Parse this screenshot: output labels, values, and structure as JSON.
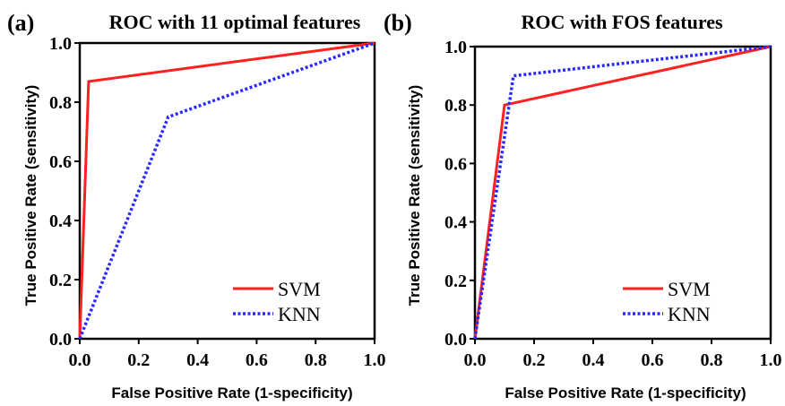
{
  "chart_data": [
    {
      "type": "line",
      "panel_label": "(a)",
      "title": "ROC with 11 optimal features",
      "xlabel": "False Positive Rate (1-specificity)",
      "ylabel": "True Positive Rate (sensitivity)",
      "xlim": [
        0,
        1
      ],
      "ylim": [
        0,
        1
      ],
      "x_ticks": [
        "0.0",
        "0.2",
        "0.4",
        "0.6",
        "0.8",
        "1.0"
      ],
      "y_ticks": [
        "0.0",
        "0.2",
        "0.4",
        "0.6",
        "0.8",
        "1.0"
      ],
      "grid": false,
      "legend_position": "bottom-right",
      "series": [
        {
          "name": "SVM",
          "color": "#ff2020",
          "style": "solid",
          "x": [
            0,
            0.03,
            1
          ],
          "y": [
            0,
            0.87,
            1
          ]
        },
        {
          "name": "KNN",
          "color": "#2a2aff",
          "style": "dotted",
          "x": [
            0,
            0.3,
            1
          ],
          "y": [
            0,
            0.75,
            1
          ]
        }
      ]
    },
    {
      "type": "line",
      "panel_label": "(b)",
      "title": "ROC with  FOS features",
      "xlabel": "False Positive Rate (1-specificity)",
      "ylabel": "True Positive Rate (sensitivity)",
      "xlim": [
        0,
        1
      ],
      "ylim": [
        0,
        1
      ],
      "x_ticks": [
        "0.0",
        "0.2",
        "0.4",
        "0.6",
        "0.8",
        "1.0"
      ],
      "y_ticks": [
        "0.0",
        "0.2",
        "0.4",
        "0.6",
        "0.8",
        "1.0"
      ],
      "grid": false,
      "legend_position": "bottom-right",
      "series": [
        {
          "name": "SVM",
          "color": "#ff2020",
          "style": "solid",
          "x": [
            0,
            0.1,
            1
          ],
          "y": [
            0,
            0.8,
            1
          ]
        },
        {
          "name": "KNN",
          "color": "#2a2aff",
          "style": "dotted",
          "x": [
            0,
            0.13,
            1
          ],
          "y": [
            0,
            0.9,
            1
          ]
        }
      ]
    }
  ]
}
